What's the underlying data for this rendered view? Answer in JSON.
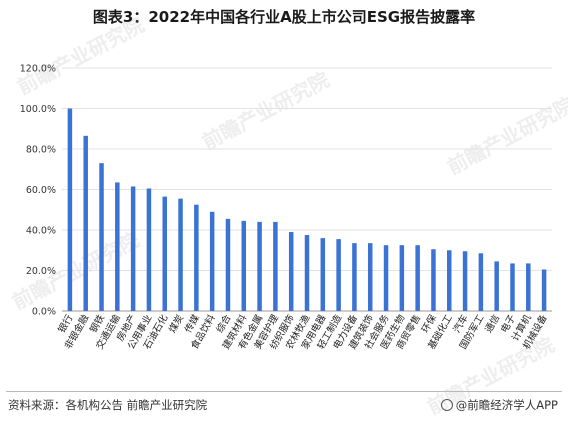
{
  "title": "图表3：2022年中国各行业A股上市公司ESG报告披露率",
  "source": "资料来源：各机构公告 前瞻产业研究院",
  "brand": "@前瞻经济学人APP",
  "watermark": "前瞻产业研究院",
  "colors": {
    "bar": "#3b73d4",
    "grid": "#e3e3e3",
    "axis": "#999999"
  },
  "chart_data": {
    "type": "bar",
    "title": "图表3：2022年中国各行业A股上市公司ESG报告披露率",
    "xlabel": "",
    "ylabel": "",
    "ylim": [
      0,
      120
    ],
    "yticks": [
      "0.0%",
      "20.0%",
      "40.0%",
      "60.0%",
      "80.0%",
      "100.0%",
      "120.0%"
    ],
    "grid": true,
    "legend": "none",
    "categories": [
      "银行",
      "非银金融",
      "钢铁",
      "交通运输",
      "房地产",
      "公用事业",
      "石油石化",
      "煤炭",
      "传媒",
      "食品饮料",
      "综合",
      "建筑材料",
      "有色金属",
      "美容护理",
      "纺织服饰",
      "农林牧渔",
      "家用电器",
      "轻工制造",
      "电力设备",
      "建筑装饰",
      "社会服务",
      "医药生物",
      "商贸零售",
      "环保",
      "基础化工",
      "汽车",
      "国防军工",
      "通信",
      "电子",
      "计算机",
      "机械设备"
    ],
    "values": [
      100.0,
      86.5,
      73.0,
      63.5,
      61.5,
      60.5,
      56.5,
      55.5,
      52.5,
      49.0,
      45.5,
      44.5,
      44.0,
      44.0,
      39.0,
      37.5,
      36.0,
      35.5,
      33.5,
      33.5,
      32.5,
      32.5,
      32.5,
      30.5,
      30.0,
      29.5,
      28.5,
      24.5,
      23.5,
      23.5,
      20.5
    ]
  }
}
